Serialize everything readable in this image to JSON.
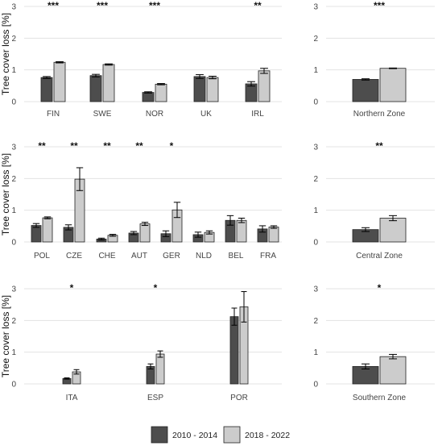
{
  "colors": {
    "period_a": "#4d4d4d",
    "period_b": "#cccccc",
    "grid": "#e3e3e3",
    "axis_text": "#444444",
    "border": "#222222"
  },
  "legend": {
    "items": [
      "2010 - 2014",
      "2018 - 2022"
    ],
    "placement": "bottom"
  },
  "chart_data": [
    {
      "type": "bar",
      "ylabel": "Tree cover loss [%]",
      "ylim": [
        0,
        3
      ],
      "yticks": [
        0,
        1,
        2,
        3
      ],
      "grid": true,
      "categories": [
        "FIN",
        "SWE",
        "NOR",
        "UK",
        "IRL"
      ],
      "significance": [
        "***",
        "***",
        "***",
        "",
        "**"
      ],
      "series": [
        {
          "name": "2010 - 2014",
          "values": [
            0.76,
            0.82,
            0.29,
            0.79,
            0.56
          ],
          "errors": [
            0.03,
            0.04,
            0.02,
            0.06,
            0.07
          ]
        },
        {
          "name": "2018 - 2022",
          "values": [
            1.24,
            1.17,
            0.55,
            0.76,
            0.97
          ],
          "errors": [
            0.02,
            0.02,
            0.02,
            0.04,
            0.08
          ]
        }
      ]
    },
    {
      "type": "bar",
      "ylabel": "",
      "ylim": [
        0,
        3
      ],
      "yticks": [
        0,
        1,
        2,
        3
      ],
      "grid": true,
      "categories": [
        "Northern Zone"
      ],
      "significance": [
        "***"
      ],
      "series": [
        {
          "name": "2010 - 2014",
          "values": [
            0.7
          ],
          "errors": [
            0.02
          ]
        },
        {
          "name": "2018 - 2022",
          "values": [
            1.05
          ],
          "errors": [
            0.01
          ]
        }
      ]
    },
    {
      "type": "bar",
      "ylabel": "Tree cover loss [%]",
      "ylim": [
        0,
        3
      ],
      "yticks": [
        0,
        1,
        2,
        3
      ],
      "grid": true,
      "categories": [
        "POL",
        "CZE",
        "CHE",
        "AUT",
        "GER",
        "NLD",
        "BEL",
        "FRA"
      ],
      "significance": [
        "**",
        "**",
        "**",
        "**",
        "*",
        "",
        "",
        ""
      ],
      "series": [
        {
          "name": "2010 - 2014",
          "values": [
            0.52,
            0.46,
            0.09,
            0.28,
            0.26,
            0.23,
            0.68,
            0.41
          ],
          "errors": [
            0.06,
            0.08,
            0.03,
            0.05,
            0.09,
            0.08,
            0.15,
            0.1
          ]
        },
        {
          "name": "2018 - 2022",
          "values": [
            0.76,
            1.98,
            0.21,
            0.57,
            1.01,
            0.3,
            0.68,
            0.47
          ],
          "errors": [
            0.03,
            0.36,
            0.03,
            0.05,
            0.24,
            0.05,
            0.07,
            0.04
          ]
        }
      ]
    },
    {
      "type": "bar",
      "ylabel": "",
      "ylim": [
        0,
        3
      ],
      "yticks": [
        0,
        1,
        2,
        3
      ],
      "grid": true,
      "categories": [
        "Central Zone"
      ],
      "significance": [
        "**"
      ],
      "series": [
        {
          "name": "2010 - 2014",
          "values": [
            0.39
          ],
          "errors": [
            0.06
          ]
        },
        {
          "name": "2018 - 2022",
          "values": [
            0.75
          ],
          "errors": [
            0.08
          ]
        }
      ]
    },
    {
      "type": "bar",
      "ylabel": "Tree cover loss [%]",
      "ylim": [
        0,
        3
      ],
      "yticks": [
        0,
        1,
        2,
        3
      ],
      "grid": true,
      "categories": [
        "ITA",
        "ESP",
        "POR"
      ],
      "significance": [
        "*",
        "*",
        ""
      ],
      "series": [
        {
          "name": "2010 - 2014",
          "values": [
            0.17,
            0.55,
            2.12
          ],
          "errors": [
            0.02,
            0.08,
            0.27
          ]
        },
        {
          "name": "2018 - 2022",
          "values": [
            0.38,
            0.94,
            2.43
          ],
          "errors": [
            0.07,
            0.1,
            0.48
          ]
        }
      ]
    },
    {
      "type": "bar",
      "ylabel": "",
      "ylim": [
        0,
        3
      ],
      "yticks": [
        0,
        1,
        2,
        3
      ],
      "grid": true,
      "categories": [
        "Southern Zone"
      ],
      "significance": [
        "*"
      ],
      "series": [
        {
          "name": "2010 - 2014",
          "values": [
            0.55
          ],
          "errors": [
            0.08
          ]
        },
        {
          "name": "2018 - 2022",
          "values": [
            0.86
          ],
          "errors": [
            0.07
          ]
        }
      ]
    }
  ]
}
